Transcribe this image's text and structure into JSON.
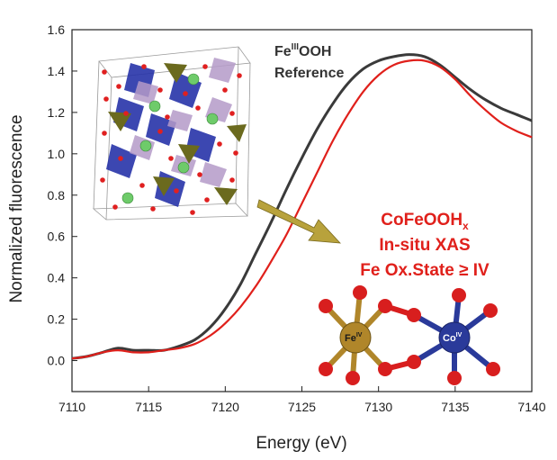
{
  "chart_data": {
    "type": "line",
    "xlabel": "Energy (eV)",
    "ylabel": "Normalized fluorescence",
    "xlim": [
      7110,
      7140
    ],
    "ylim": [
      -0.15,
      1.6
    ],
    "x_ticks": [
      7110,
      7115,
      7120,
      7125,
      7130,
      7135,
      7140
    ],
    "y_ticks": [
      0.0,
      0.2,
      0.4,
      0.6,
      0.8,
      1.0,
      1.2,
      1.4,
      1.6
    ],
    "grid": false,
    "series": [
      {
        "name": "FeIIIOOH Reference",
        "color": "#3a3a3a",
        "x": [
          7110,
          7111,
          7112,
          7113,
          7114,
          7115,
          7116,
          7117,
          7118,
          7119,
          7120,
          7121,
          7122,
          7123,
          7124,
          7125,
          7126,
          7127,
          7128,
          7129,
          7130,
          7131,
          7132,
          7133,
          7134,
          7135,
          7136,
          7137,
          7138,
          7139,
          7140
        ],
        "values": [
          0.01,
          0.02,
          0.04,
          0.06,
          0.05,
          0.05,
          0.05,
          0.07,
          0.1,
          0.16,
          0.25,
          0.37,
          0.52,
          0.67,
          0.83,
          0.98,
          1.12,
          1.24,
          1.34,
          1.41,
          1.45,
          1.47,
          1.48,
          1.47,
          1.43,
          1.37,
          1.31,
          1.26,
          1.22,
          1.19,
          1.16
        ]
      },
      {
        "name": "CoFeOOHx In-situ XAS",
        "color": "#e0201b",
        "x": [
          7110,
          7111,
          7112,
          7113,
          7114,
          7115,
          7116,
          7117,
          7118,
          7119,
          7120,
          7121,
          7122,
          7123,
          7124,
          7125,
          7126,
          7127,
          7128,
          7129,
          7130,
          7131,
          7132,
          7133,
          7134,
          7135,
          7136,
          7137,
          7138,
          7139,
          7140
        ],
        "values": [
          0.01,
          0.02,
          0.04,
          0.05,
          0.04,
          0.04,
          0.05,
          0.06,
          0.08,
          0.12,
          0.18,
          0.26,
          0.36,
          0.48,
          0.61,
          0.76,
          0.91,
          1.06,
          1.19,
          1.3,
          1.38,
          1.43,
          1.45,
          1.45,
          1.42,
          1.36,
          1.28,
          1.21,
          1.15,
          1.11,
          1.08
        ]
      }
    ]
  },
  "annotations": {
    "ref_title_prefix": "Fe",
    "ref_title_sup": "III",
    "ref_title_suffix": "OOH",
    "ref_subtitle": "Reference",
    "sample_line1_main": "CoFeOOH",
    "sample_line1_sub": "x",
    "sample_line2": "In-situ XAS",
    "sample_line3": "Fe Ox.State ≥ IV",
    "fe_label_main": "Fe",
    "fe_label_sup": "IV",
    "co_label_main": "Co",
    "co_label_sup": "IV"
  },
  "colors": {
    "reference": "#3a3a3a",
    "sample": "#e0201b",
    "arrow": "#b8a23c",
    "fe_atom": "#b0862a",
    "co_atom": "#2a3a9a",
    "oxygen": "#d81e1e"
  }
}
